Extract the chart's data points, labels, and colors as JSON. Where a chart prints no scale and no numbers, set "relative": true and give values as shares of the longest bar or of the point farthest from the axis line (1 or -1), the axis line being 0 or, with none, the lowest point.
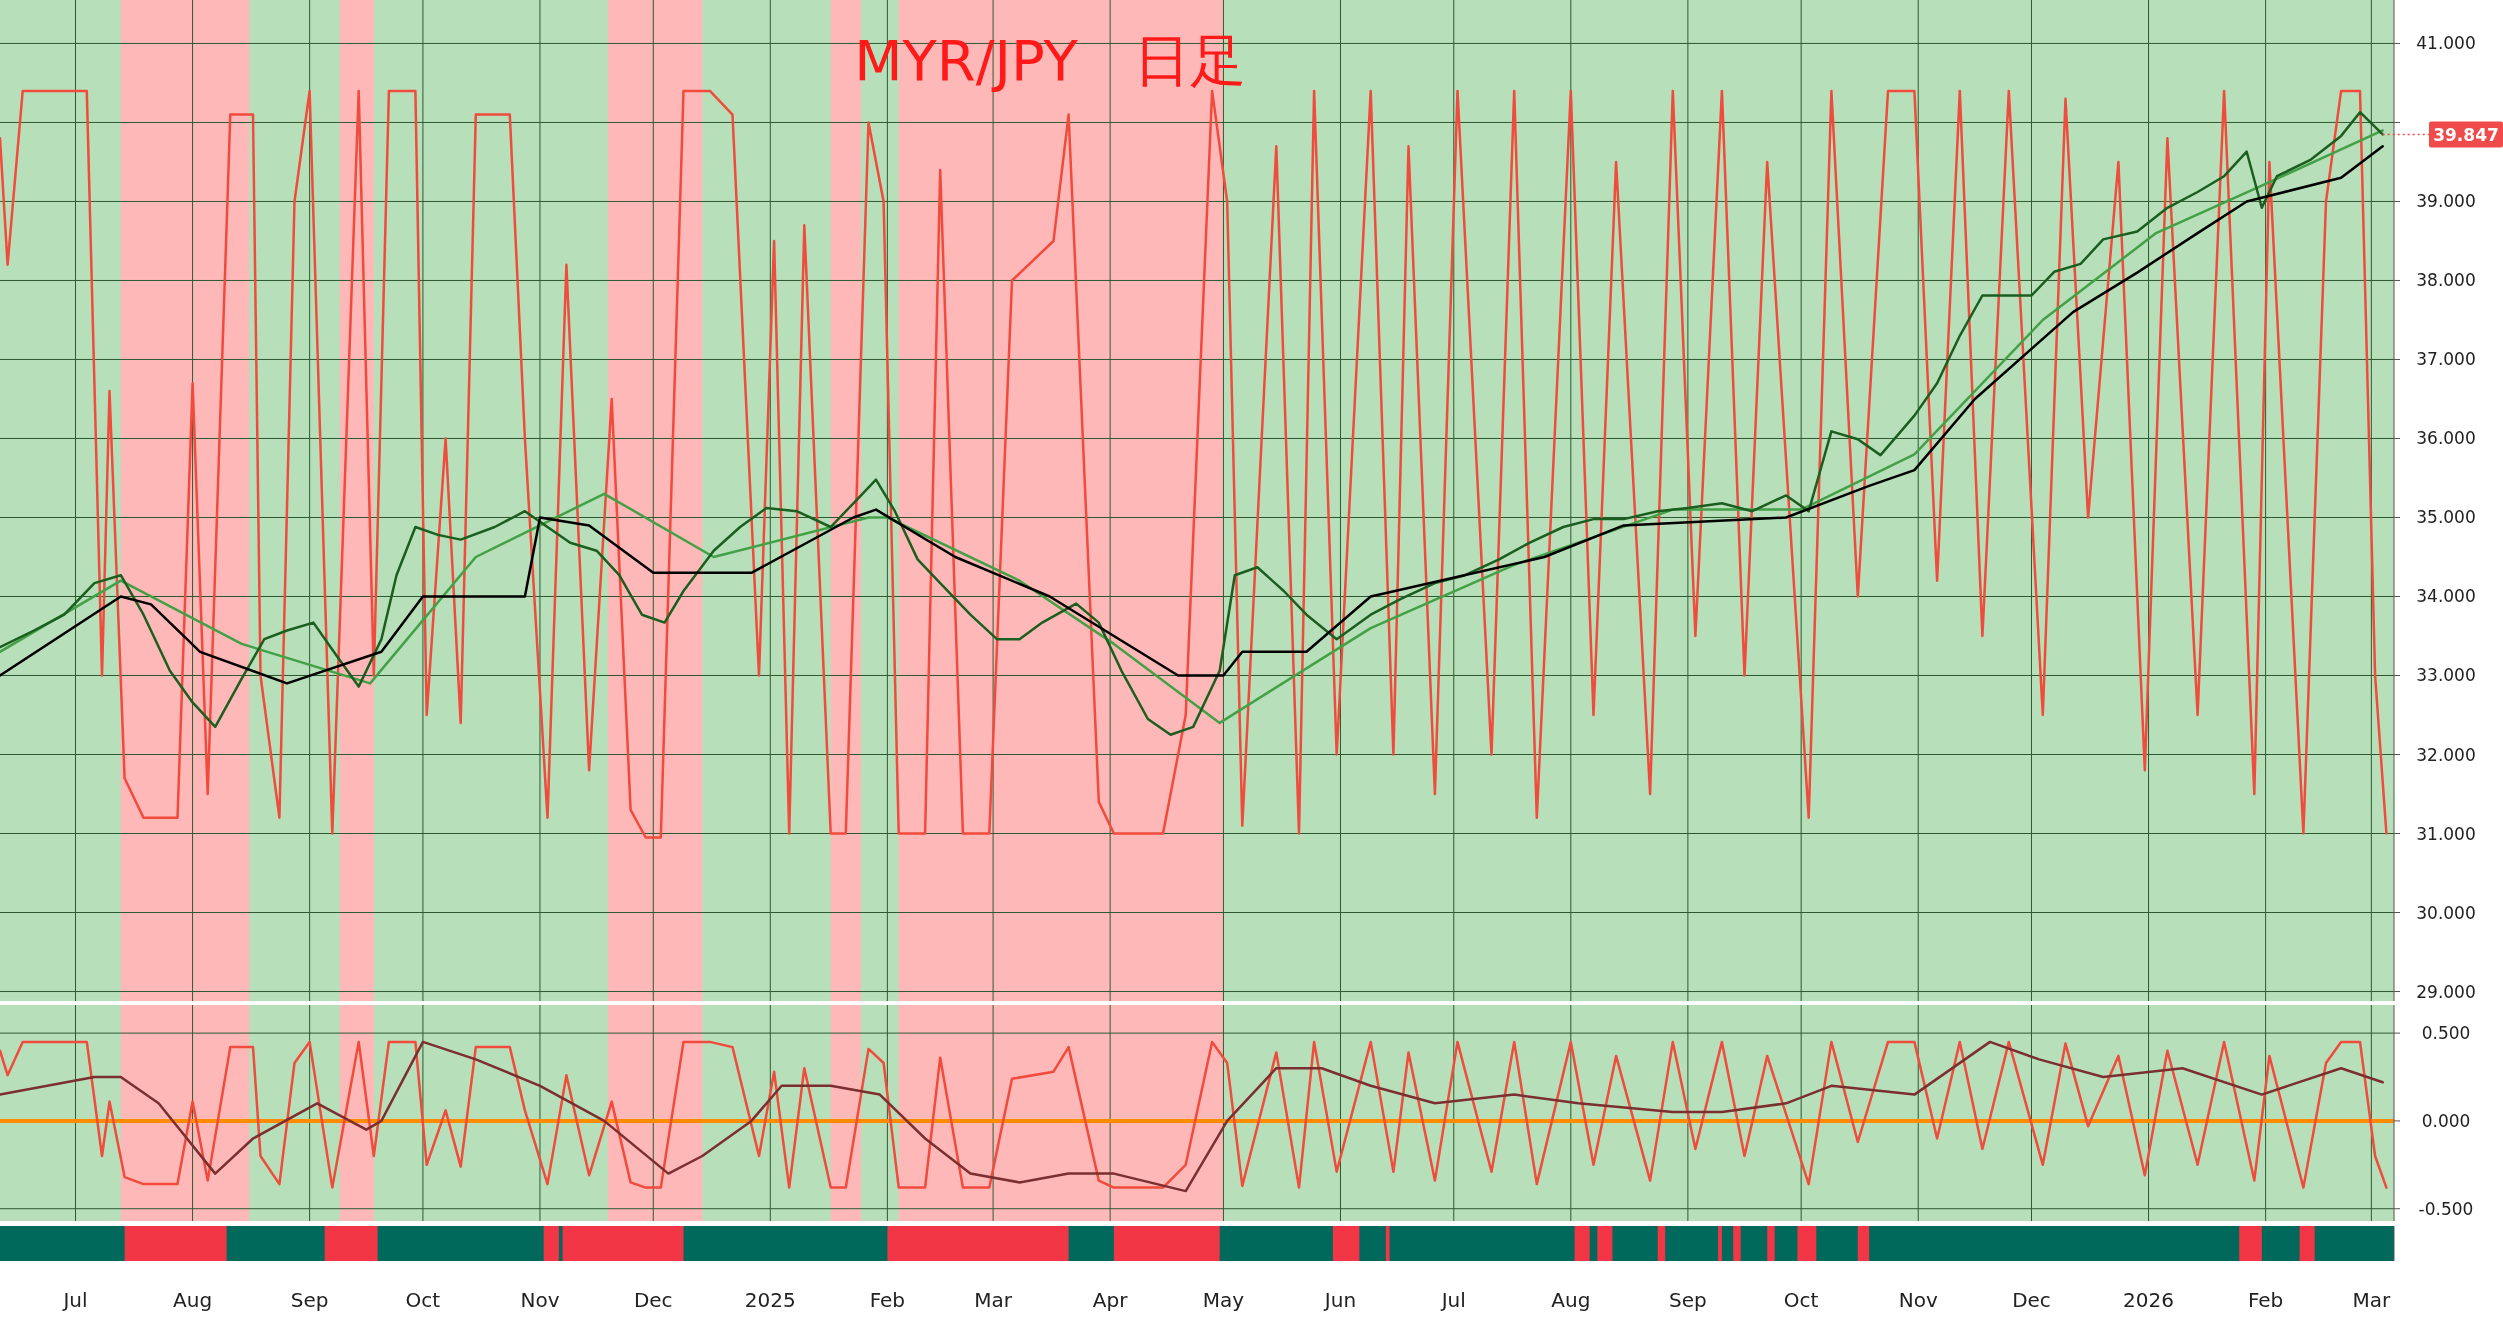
{
  "chart_data": [
    {
      "type": "line",
      "title": "MYR/JPY　日足",
      "xlim": [
        "2024-06-11",
        "2026-03-07"
      ],
      "ylim": [
        28.88,
        41.55
      ],
      "grid": true,
      "tick_labels": "y",
      "xticks": [
        {
          "value": "2024-07-01",
          "label": null
        },
        {
          "value": "2024-08-01",
          "label": null
        },
        {
          "value": "2024-09-01",
          "label": null
        },
        {
          "value": "2024-10-01",
          "label": null
        },
        {
          "value": "2024-11-01",
          "label": null
        },
        {
          "value": "2024-12-01",
          "label": null
        },
        {
          "value": "2025-01-01",
          "label": null
        },
        {
          "value": "2025-02-01",
          "label": null
        },
        {
          "value": "2025-03-01",
          "label": null
        },
        {
          "value": "2025-04-01",
          "label": null
        },
        {
          "value": "2025-05-01",
          "label": null
        },
        {
          "value": "2025-06-01",
          "label": null
        },
        {
          "value": "2025-07-01",
          "label": null
        },
        {
          "value": "2025-08-01",
          "label": null
        },
        {
          "value": "2025-09-01",
          "label": null
        },
        {
          "value": "2025-10-01",
          "label": null
        },
        {
          "value": "2025-11-01",
          "label": null
        },
        {
          "value": "2025-12-01",
          "label": null
        },
        {
          "value": "2026-01-01",
          "label": null
        },
        {
          "value": "2026-02-01",
          "label": null
        },
        {
          "value": "2026-03-01",
          "label": null
        }
      ],
      "yticks": [
        {
          "value": 29,
          "label": "29.000"
        },
        {
          "value": 30,
          "label": "30.000"
        },
        {
          "value": 31,
          "label": "31.000"
        },
        {
          "value": 32,
          "label": "32.000"
        },
        {
          "value": 33,
          "label": "33.000"
        },
        {
          "value": 34,
          "label": "34.000"
        },
        {
          "value": 35,
          "label": "35.000"
        },
        {
          "value": 36,
          "label": "36.000"
        },
        {
          "value": 37,
          "label": "37.000"
        },
        {
          "value": 38,
          "label": "38.000"
        },
        {
          "value": 39,
          "label": "39.000"
        },
        {
          "value": 40,
          "label": null
        },
        {
          "value": 41,
          "label": "41.000"
        }
      ],
      "bands": [
        {
          "axis": "x",
          "from": "2024-07-13",
          "to": "2024-08-16",
          "color": "#ffb8b8"
        },
        {
          "axis": "x",
          "from": "2024-09-09",
          "to": "2024-09-18",
          "color": "#ffb8b8"
        },
        {
          "axis": "x",
          "from": "2024-11-19",
          "to": "2024-12-14",
          "color": "#ffb8b8"
        },
        {
          "axis": "x",
          "from": "2025-01-17",
          "to": "2025-01-25",
          "color": "#ffb8b8"
        },
        {
          "axis": "x",
          "from": "2025-02-04",
          "to": "2025-05-01",
          "color": "#ffb8b8"
        }
      ],
      "annotations": [
        {
          "text": "39.847",
          "x": "2026-03-04",
          "y": 39.847
        }
      ],
      "series": [
        {
          "color": "#f04b3c",
          "x": [
            "2024-06-11",
            "2024-06-13",
            "2024-06-17",
            "2024-07-04",
            "2024-07-08",
            "2024-07-10",
            "2024-07-14",
            "2024-07-19",
            "2024-07-28",
            "2024-08-01",
            "2024-08-05",
            "2024-08-11",
            "2024-08-17",
            "2024-08-19",
            "2024-08-24",
            "2024-08-28",
            "2024-09-01",
            "2024-09-07",
            "2024-09-14",
            "2024-09-18",
            "2024-09-22",
            "2024-09-29",
            "2024-10-02",
            "2024-10-07",
            "2024-10-11",
            "2024-10-15",
            "2024-10-24",
            "2024-10-28",
            "2024-11-03",
            "2024-11-08",
            "2024-11-14",
            "2024-11-20",
            "2024-11-25",
            "2024-11-29",
            "2024-12-03",
            "2024-12-09",
            "2024-12-16",
            "2024-12-22",
            "2024-12-29",
            "2025-01-02",
            "2025-01-06",
            "2025-01-10",
            "2025-01-17",
            "2025-01-21",
            "2025-01-27",
            "2025-01-31",
            "2025-02-04",
            "2025-02-11",
            "2025-02-15",
            "2025-02-21",
            "2025-02-28",
            "2025-03-06",
            "2025-03-17",
            "2025-03-21",
            "2025-03-29",
            "2025-04-02",
            "2025-04-15",
            "2025-04-21",
            "2025-04-28",
            "2025-05-02",
            "2025-05-06",
            "2025-05-15",
            "2025-05-21",
            "2025-05-25",
            "2025-05-31",
            "2025-06-09",
            "2025-06-15",
            "2025-06-19",
            "2025-06-26",
            "2025-07-02",
            "2025-07-11",
            "2025-07-17",
            "2025-07-23",
            "2025-08-01",
            "2025-08-07",
            "2025-08-13",
            "2025-08-22",
            "2025-08-28",
            "2025-09-03",
            "2025-09-10",
            "2025-09-16",
            "2025-09-22",
            "2025-10-03",
            "2025-10-09",
            "2025-10-16",
            "2025-10-24",
            "2025-10-31",
            "2025-11-06",
            "2025-11-12",
            "2025-11-18",
            "2025-11-25",
            "2025-12-04",
            "2025-12-10",
            "2025-12-16",
            "2025-12-24",
            "2025-12-31",
            "2026-01-06",
            "2026-01-14",
            "2026-01-21",
            "2026-01-29",
            "2026-02-02",
            "2026-02-11",
            "2026-02-17",
            "2026-02-21",
            "2026-02-26",
            "2026-03-02",
            "2026-03-05"
          ],
          "values": [
            39.8,
            38.2,
            40.4,
            40.4,
            33,
            36.6,
            31.7,
            31.2,
            31.2,
            36.7,
            31.5,
            40.1,
            40.1,
            33,
            31.2,
            39,
            40.4,
            31.0,
            40.4,
            33,
            40.4,
            40.4,
            32.5,
            36,
            32.4,
            40.1,
            40.1,
            36,
            31.2,
            38.2,
            31.8,
            36.5,
            31.3,
            30.95,
            30.95,
            40.4,
            40.4,
            40.1,
            33,
            38.5,
            31,
            38.7,
            31.0,
            31,
            40.0,
            39,
            31.0,
            31.0,
            39.4,
            31,
            31,
            38,
            38.5,
            40.1,
            31.4,
            31.0,
            31.0,
            32.5,
            40.4,
            39,
            31.1,
            39.7,
            31,
            40.4,
            32,
            40.4,
            32,
            39.7,
            31.5,
            40.4,
            32,
            40.4,
            31.2,
            40.4,
            32.5,
            39.5,
            31.5,
            40.4,
            33.5,
            40.4,
            33,
            39.5,
            31.2,
            40.4,
            34,
            40.4,
            40.4,
            34.2,
            40.4,
            33.5,
            40.4,
            32.5,
            40.3,
            35,
            39.5,
            31.8,
            39.8,
            32.5,
            40.4,
            31.5,
            39.5,
            31.0,
            39,
            40.4,
            40.4,
            33,
            31.0
          ]
        },
        {
          "color": "#43a047",
          "x": [
            "2024-06-11",
            "2024-07-13",
            "2024-08-14",
            "2024-09-17",
            "2024-10-15",
            "2024-11-18",
            "2024-12-17",
            "2025-01-27",
            "2025-02-01",
            "2025-03-08",
            "2025-04-02",
            "2025-04-30",
            "2025-06-09",
            "2025-07-17",
            "2025-08-28",
            "2025-10-01",
            "2025-10-31",
            "2025-12-04",
            "2026-01-03",
            "2026-01-31",
            "2026-03-04"
          ],
          "values": [
            33.3,
            34.2,
            33.4,
            32.9,
            34.5,
            35.3,
            34.5,
            35.0,
            35.0,
            34.2,
            33.4,
            32.4,
            33.6,
            34.4,
            35.1,
            35.1,
            35.8,
            37.5,
            38.6,
            39.2,
            39.9
          ]
        },
        {
          "color": "#1b5e20",
          "x": [
            "2024-06-11",
            "2024-06-20",
            "2024-06-28",
            "2024-07-06",
            "2024-07-13",
            "2024-07-19",
            "2024-07-26",
            "2024-08-01",
            "2024-08-07",
            "2024-08-14",
            "2024-08-20",
            "2024-08-26",
            "2024-09-02",
            "2024-09-08",
            "2024-09-14",
            "2024-09-20",
            "2024-09-24",
            "2024-09-29",
            "2024-10-05",
            "2024-10-11",
            "2024-10-20",
            "2024-10-28",
            "2024-11-03",
            "2024-11-09",
            "2024-11-16",
            "2024-11-22",
            "2024-11-28",
            "2024-12-04",
            "2024-12-09",
            "2024-12-17",
            "2024-12-24",
            "2024-12-31",
            "2025-01-08",
            "2025-01-17",
            "2025-01-23",
            "2025-01-29",
            "2025-02-03",
            "2025-02-09",
            "2025-02-15",
            "2025-02-23",
            "2025-03-02",
            "2025-03-08",
            "2025-03-14",
            "2025-03-23",
            "2025-03-29",
            "2025-04-04",
            "2025-04-11",
            "2025-04-17",
            "2025-04-23",
            "2025-04-30",
            "2025-05-04",
            "2025-05-10",
            "2025-05-17",
            "2025-05-23",
            "2025-05-31",
            "2025-06-09",
            "2025-06-17",
            "2025-06-26",
            "2025-07-04",
            "2025-07-13",
            "2025-07-21",
            "2025-07-30",
            "2025-08-07",
            "2025-08-15",
            "2025-08-24",
            "2025-09-01",
            "2025-09-10",
            "2025-09-18",
            "2025-09-27",
            "2025-10-03",
            "2025-10-09",
            "2025-10-16",
            "2025-10-22",
            "2025-10-31",
            "2025-11-06",
            "2025-11-12",
            "2025-11-18",
            "2025-11-25",
            "2025-12-01",
            "2025-12-07",
            "2025-12-14",
            "2025-12-20",
            "2025-12-29",
            "2026-01-06",
            "2026-01-14",
            "2026-01-21",
            "2026-01-27",
            "2026-01-31",
            "2026-02-04",
            "2026-02-13",
            "2026-02-21",
            "2026-02-26",
            "2026-03-04"
          ],
          "values": [
            33.36,
            33.57,
            33.77,
            34.17,
            34.27,
            33.77,
            33.06,
            32.66,
            32.35,
            32.96,
            33.46,
            33.57,
            33.67,
            33.26,
            32.86,
            33.46,
            34.27,
            34.88,
            34.78,
            34.72,
            34.88,
            35.08,
            34.88,
            34.68,
            34.58,
            34.27,
            33.77,
            33.67,
            34.07,
            34.58,
            34.88,
            35.12,
            35.08,
            34.88,
            35.18,
            35.48,
            35.08,
            34.47,
            34.17,
            33.77,
            33.46,
            33.46,
            33.67,
            33.91,
            33.67,
            33.06,
            32.45,
            32.25,
            32.35,
            33.06,
            34.27,
            34.37,
            34.07,
            33.77,
            33.46,
            33.77,
            33.97,
            34.17,
            34.27,
            34.47,
            34.68,
            34.88,
            34.98,
            34.98,
            35.08,
            35.12,
            35.18,
            35.08,
            35.28,
            35.08,
            36.09,
            35.99,
            35.79,
            36.29,
            36.7,
            37.3,
            37.81,
            37.81,
            37.81,
            38.11,
            38.21,
            38.52,
            38.62,
            38.92,
            39.12,
            39.32,
            39.63,
            38.92,
            39.32,
            39.53,
            39.83,
            40.13,
            39.85
          ]
        },
        {
          "color": "#000000",
          "x": [
            "2024-06-11",
            "2024-07-13",
            "2024-07-21",
            "2024-08-03",
            "2024-08-26",
            "2024-09-20",
            "2024-10-01",
            "2024-10-28",
            "2024-11-01",
            "2024-11-14",
            "2024-12-01",
            "2024-12-27",
            "2025-01-23",
            "2025-01-29",
            "2025-02-19",
            "2025-03-16",
            "2025-04-02",
            "2025-04-19",
            "2025-05-01",
            "2025-05-06",
            "2025-05-23",
            "2025-06-09",
            "2025-07-25",
            "2025-08-15",
            "2025-09-27",
            "2025-10-19",
            "2025-10-31",
            "2025-11-16",
            "2025-12-12",
            "2025-12-29",
            "2026-01-14",
            "2026-01-27",
            "2026-02-21",
            "2026-03-04"
          ],
          "values": [
            33.0,
            34.0,
            33.9,
            33.3,
            32.9,
            33.3,
            34.0,
            34.0,
            35.0,
            34.9,
            34.3,
            34.3,
            35.0,
            35.1,
            34.5,
            34.0,
            33.5,
            33.0,
            33.0,
            33.3,
            33.3,
            34.0,
            34.5,
            34.9,
            35.0,
            35.4,
            35.6,
            36.5,
            37.6,
            38.1,
            38.6,
            39.0,
            39.3,
            39.7
          ]
        }
      ]
    },
    {
      "type": "line",
      "xlim": [
        "2024-06-11",
        "2026-03-07"
      ],
      "ylim": [
        -0.57,
        0.66
      ],
      "grid": true,
      "tick_labels": "y",
      "xticks": [
        {
          "value": "2024-07-01",
          "label": null
        },
        {
          "value": "2024-08-01",
          "label": null
        },
        {
          "value": "2024-09-01",
          "label": null
        },
        {
          "value": "2024-10-01",
          "label": null
        },
        {
          "value": "2024-11-01",
          "label": null
        },
        {
          "value": "2024-12-01",
          "label": null
        },
        {
          "value": "2025-01-01",
          "label": null
        },
        {
          "value": "2025-02-01",
          "label": null
        },
        {
          "value": "2025-03-01",
          "label": null
        },
        {
          "value": "2025-04-01",
          "label": null
        },
        {
          "value": "2025-05-01",
          "label": null
        },
        {
          "value": "2025-06-01",
          "label": null
        },
        {
          "value": "2025-07-01",
          "label": null
        },
        {
          "value": "2025-08-01",
          "label": null
        },
        {
          "value": "2025-09-01",
          "label": null
        },
        {
          "value": "2025-10-01",
          "label": null
        },
        {
          "value": "2025-11-01",
          "label": null
        },
        {
          "value": "2025-12-01",
          "label": null
        },
        {
          "value": "2026-01-01",
          "label": null
        },
        {
          "value": "2026-02-01",
          "label": null
        },
        {
          "value": "2026-03-01",
          "label": null
        }
      ],
      "yticks": [
        {
          "value": -0.5,
          "label": "-0.500"
        },
        {
          "value": 0,
          "label": "0.000"
        },
        {
          "value": 0.5,
          "label": "0.500"
        }
      ],
      "bands": [
        {
          "axis": "x",
          "from": "2024-07-13",
          "to": "2024-08-16",
          "color": "#ffb8b8"
        },
        {
          "axis": "x",
          "from": "2024-09-09",
          "to": "2024-09-18",
          "color": "#ffb8b8"
        },
        {
          "axis": "x",
          "from": "2024-11-19",
          "to": "2024-12-14",
          "color": "#ffb8b8"
        },
        {
          "axis": "x",
          "from": "2025-01-17",
          "to": "2025-01-25",
          "color": "#ffb8b8"
        },
        {
          "axis": "x",
          "from": "2025-02-04",
          "to": "2025-05-01",
          "color": "#ffb8b8"
        }
      ],
      "ref_lines": [
        {
          "axis": "y",
          "value": 0,
          "color": "#ff8c00"
        }
      ],
      "series": [
        {
          "color": "#f04b3c",
          "x": [
            "2024-06-11",
            "2024-06-13",
            "2024-06-17",
            "2024-07-04",
            "2024-07-08",
            "2024-07-10",
            "2024-07-14",
            "2024-07-19",
            "2024-07-28",
            "2024-08-01",
            "2024-08-05",
            "2024-08-11",
            "2024-08-17",
            "2024-08-19",
            "2024-08-24",
            "2024-08-28",
            "2024-09-01",
            "2024-09-07",
            "2024-09-14",
            "2024-09-18",
            "2024-09-22",
            "2024-09-29",
            "2024-10-02",
            "2024-10-07",
            "2024-10-11",
            "2024-10-15",
            "2024-10-24",
            "2024-10-28",
            "2024-11-03",
            "2024-11-08",
            "2024-11-14",
            "2024-11-20",
            "2024-11-25",
            "2024-11-29",
            "2024-12-03",
            "2024-12-09",
            "2024-12-16",
            "2024-12-22",
            "2024-12-29",
            "2025-01-02",
            "2025-01-06",
            "2025-01-10",
            "2025-01-17",
            "2025-01-21",
            "2025-01-27",
            "2025-01-31",
            "2025-02-04",
            "2025-02-11",
            "2025-02-15",
            "2025-02-21",
            "2025-02-28",
            "2025-03-06",
            "2025-03-17",
            "2025-03-21",
            "2025-03-29",
            "2025-04-02",
            "2025-04-15",
            "2025-04-21",
            "2025-04-28",
            "2025-05-02",
            "2025-05-06",
            "2025-05-15",
            "2025-05-21",
            "2025-05-25",
            "2025-05-31",
            "2025-06-09",
            "2025-06-15",
            "2025-06-19",
            "2025-06-26",
            "2025-07-02",
            "2025-07-11",
            "2025-07-17",
            "2025-07-23",
            "2025-08-01",
            "2025-08-07",
            "2025-08-13",
            "2025-08-22",
            "2025-08-28",
            "2025-09-03",
            "2025-09-10",
            "2025-09-16",
            "2025-09-22",
            "2025-10-03",
            "2025-10-09",
            "2025-10-16",
            "2025-10-24",
            "2025-10-31",
            "2025-11-06",
            "2025-11-12",
            "2025-11-18",
            "2025-11-25",
            "2025-12-04",
            "2025-12-10",
            "2025-12-16",
            "2025-12-24",
            "2025-12-31",
            "2026-01-06",
            "2026-01-14",
            "2026-01-21",
            "2026-01-29",
            "2026-02-02",
            "2026-02-11",
            "2026-02-17",
            "2026-02-21",
            "2026-02-26",
            "2026-03-02",
            "2026-03-05"
          ],
          "values": [
            0.4,
            0.26,
            0.45,
            0.45,
            -0.2,
            0.11,
            -0.32,
            -0.36,
            -0.36,
            0.11,
            -0.34,
            0.42,
            0.42,
            -0.2,
            -0.36,
            0.33,
            0.45,
            -0.38,
            0.45,
            -0.2,
            0.45,
            0.45,
            -0.25,
            0.06,
            -0.26,
            0.42,
            0.42,
            0.06,
            -0.36,
            0.26,
            -0.31,
            0.11,
            -0.35,
            -0.38,
            -0.38,
            0.45,
            0.45,
            0.42,
            -0.2,
            0.28,
            -0.38,
            0.3,
            -0.38,
            -0.38,
            0.41,
            0.33,
            -0.38,
            -0.38,
            0.36,
            -0.38,
            -0.38,
            0.24,
            0.28,
            0.42,
            -0.34,
            -0.38,
            -0.38,
            -0.25,
            0.45,
            0.33,
            -0.37,
            0.39,
            -0.38,
            0.45,
            -0.29,
            0.45,
            -0.29,
            0.39,
            -0.34,
            0.45,
            -0.29,
            0.45,
            -0.36,
            0.45,
            -0.25,
            0.37,
            -0.34,
            0.45,
            -0.16,
            0.45,
            -0.2,
            0.37,
            -0.36,
            0.45,
            -0.12,
            0.45,
            0.45,
            -0.1,
            0.45,
            -0.16,
            0.45,
            -0.25,
            0.44,
            -0.03,
            0.37,
            -0.31,
            0.4,
            -0.25,
            0.45,
            -0.34,
            0.37,
            -0.38,
            0.33,
            0.45,
            0.45,
            -0.2,
            -0.38
          ]
        },
        {
          "color": "#7b2f2f",
          "x": [
            "2024-06-11",
            "2024-07-06",
            "2024-07-13",
            "2024-07-23",
            "2024-08-07",
            "2024-08-17",
            "2024-09-03",
            "2024-09-16",
            "2024-09-20",
            "2024-10-01",
            "2024-10-15",
            "2024-11-01",
            "2024-11-18",
            "2024-12-05",
            "2024-12-14",
            "2024-12-27",
            "2025-01-04",
            "2025-01-17",
            "2025-01-30",
            "2025-02-11",
            "2025-02-23",
            "2025-03-08",
            "2025-03-21",
            "2025-04-02",
            "2025-04-21",
            "2025-05-02",
            "2025-05-15",
            "2025-05-27",
            "2025-06-09",
            "2025-06-26",
            "2025-07-17",
            "2025-08-03",
            "2025-08-28",
            "2025-09-10",
            "2025-09-27",
            "2025-10-09",
            "2025-10-31",
            "2025-11-20",
            "2025-12-03",
            "2025-12-20",
            "2026-01-10",
            "2026-01-31",
            "2026-02-21",
            "2026-03-04"
          ],
          "values": [
            0.15,
            0.25,
            0.25,
            0.1,
            -0.3,
            -0.1,
            0.1,
            -0.05,
            0.0,
            0.45,
            0.35,
            0.2,
            0.0,
            -0.3,
            -0.2,
            0.0,
            0.2,
            0.2,
            0.15,
            -0.1,
            -0.3,
            -0.35,
            -0.3,
            -0.3,
            -0.4,
            0.0,
            0.3,
            0.3,
            0.2,
            0.1,
            0.15,
            0.1,
            0.05,
            0.05,
            0.1,
            0.2,
            0.15,
            0.45,
            0.35,
            0.25,
            0.3,
            0.15,
            0.3,
            0.22
          ]
        }
      ]
    },
    {
      "type": "area",
      "relative": true,
      "xlim": [
        "2024-06-11",
        "2026-03-07"
      ],
      "tick_labels": "x",
      "xticks": [
        {
          "value": "2024-07-01",
          "label": "Jul"
        },
        {
          "value": "2024-08-01",
          "label": "Aug"
        },
        {
          "value": "2024-09-01",
          "label": "Sep"
        },
        {
          "value": "2024-10-01",
          "label": "Oct"
        },
        {
          "value": "2024-11-01",
          "label": "Nov"
        },
        {
          "value": "2024-12-01",
          "label": "Dec"
        },
        {
          "value": "2025-01-01",
          "label": "2025"
        },
        {
          "value": "2025-02-01",
          "label": "Feb"
        },
        {
          "value": "2025-03-01",
          "label": "Mar"
        },
        {
          "value": "2025-04-01",
          "label": "Apr"
        },
        {
          "value": "2025-05-01",
          "label": "May"
        },
        {
          "value": "2025-06-01",
          "label": "Jun"
        },
        {
          "value": "2025-07-01",
          "label": "Jul"
        },
        {
          "value": "2025-08-01",
          "label": "Aug"
        },
        {
          "value": "2025-09-01",
          "label": "Sep"
        },
        {
          "value": "2025-10-01",
          "label": "Oct"
        },
        {
          "value": "2025-11-01",
          "label": "Nov"
        },
        {
          "value": "2025-12-01",
          "label": "Dec"
        },
        {
          "value": "2026-01-01",
          "label": "2026"
        },
        {
          "value": "2026-02-01",
          "label": "Feb"
        },
        {
          "value": "2026-03-01",
          "label": "Mar"
        }
      ],
      "series": [
        {
          "color": "#f23645",
          "x": [
            "2024-06-11",
            "2024-07-14",
            "2024-07-14",
            "2024-08-10",
            "2024-08-10",
            "2024-09-05",
            "2024-09-05",
            "2024-09-19",
            "2024-09-19",
            "2024-11-02",
            "2024-11-02",
            "2024-11-06",
            "2024-11-06",
            "2024-11-07",
            "2024-11-07",
            "2024-12-09",
            "2024-12-09",
            "2025-02-01",
            "2025-02-01",
            "2025-03-21",
            "2025-03-21",
            "2025-04-02",
            "2025-04-02",
            "2025-04-30",
            "2025-04-30",
            "2025-05-30",
            "2025-05-30",
            "2025-06-06",
            "2025-06-06",
            "2025-06-13",
            "2025-06-13",
            "2025-06-14",
            "2025-06-14",
            "2025-08-02",
            "2025-08-02",
            "2025-08-06",
            "2025-08-06",
            "2025-08-08",
            "2025-08-08",
            "2025-08-12",
            "2025-08-12",
            "2025-08-24",
            "2025-08-24",
            "2025-08-26",
            "2025-08-26",
            "2025-09-09",
            "2025-09-09",
            "2025-09-10",
            "2025-09-10",
            "2025-09-13",
            "2025-09-13",
            "2025-09-15",
            "2025-09-15",
            "2025-09-22",
            "2025-09-22",
            "2025-09-24",
            "2025-09-24",
            "2025-09-30",
            "2025-09-30",
            "2025-10-05",
            "2025-10-05",
            "2025-10-16",
            "2025-10-16",
            "2025-10-19",
            "2025-10-19",
            "2026-01-25",
            "2026-01-25",
            "2026-01-31",
            "2026-01-31",
            "2026-02-10",
            "2026-02-10",
            "2026-02-14",
            "2026-02-14",
            "2026-03-07"
          ],
          "values": [
            0,
            0,
            1,
            1,
            0,
            0,
            1,
            1,
            0,
            0,
            1,
            1,
            0,
            0,
            1,
            1,
            0,
            0,
            1,
            1,
            0,
            0,
            1,
            1,
            0,
            0,
            1,
            1,
            0,
            0,
            1,
            1,
            0,
            0,
            1,
            1,
            0,
            0,
            1,
            1,
            0,
            0,
            1,
            1,
            0,
            0,
            1,
            1,
            0,
            0,
            1,
            1,
            0,
            0,
            1,
            1,
            0,
            0,
            1,
            1,
            0,
            0,
            1,
            1,
            0,
            0,
            1,
            1,
            0,
            0,
            1,
            1,
            0,
            0
          ]
        }
      ]
    }
  ]
}
